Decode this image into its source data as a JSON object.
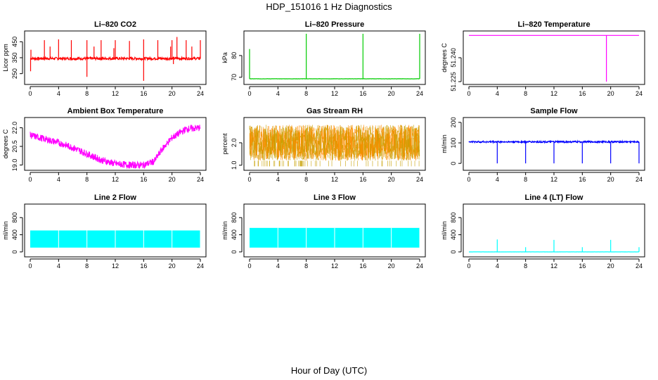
{
  "figure": {
    "title": "HDP_151016  1 Hz Diagnostics",
    "xlabel": "Hour of Day (UTC)"
  },
  "chart_data": [
    {
      "type": "line",
      "title": "Li–820 CO2",
      "ylabel": "Licor ppm",
      "color": "#ff0000",
      "xlim": [
        0,
        24
      ],
      "ylim": [
        200,
        500
      ],
      "xticks": [
        0,
        4,
        8,
        12,
        16,
        20,
        24
      ],
      "yticks": [
        250,
        350,
        450
      ],
      "baseline": 345,
      "noise": 8,
      "spikes_up": [
        [
          0.1,
          400
        ],
        [
          2.0,
          460
        ],
        [
          2.8,
          420
        ],
        [
          4.0,
          465
        ],
        [
          5.8,
          460
        ],
        [
          8.0,
          460
        ],
        [
          9.0,
          420
        ],
        [
          10.0,
          460
        ],
        [
          11.8,
          410
        ],
        [
          12.0,
          460
        ],
        [
          14.0,
          455
        ],
        [
          16.0,
          465
        ],
        [
          18.0,
          460
        ],
        [
          19.8,
          420
        ],
        [
          20.0,
          460
        ],
        [
          20.7,
          480
        ],
        [
          22.0,
          460
        ],
        [
          22.8,
          420
        ],
        [
          24.0,
          460
        ]
      ],
      "spikes_down": [
        [
          0.05,
          265
        ],
        [
          8.0,
          230
        ],
        [
          16.0,
          205
        ],
        [
          20.2,
          310
        ]
      ],
      "grid": false
    },
    {
      "type": "line",
      "title": "Li–820 Pressure",
      "ylabel": "kPa",
      "color": "#00cc00",
      "xlim": [
        0,
        24
      ],
      "ylim": [
        68,
        90
      ],
      "xticks": [
        0,
        4,
        8,
        12,
        16,
        20,
        24
      ],
      "yticks": [
        70,
        80
      ],
      "baseline": 69.3,
      "noise": 0.05,
      "spikes_up": [
        [
          0.0,
          83
        ],
        [
          8.0,
          90
        ],
        [
          16.0,
          90
        ],
        [
          24.0,
          90
        ]
      ],
      "spikes_down": [],
      "grid": false
    },
    {
      "type": "line",
      "title": "Li–820 Temperature",
      "ylabel": "degrees C",
      "color": "#ff00ff",
      "xlim": [
        0,
        24
      ],
      "ylim": [
        51.225,
        51.255
      ],
      "xticks": [
        0,
        4,
        8,
        12,
        16,
        20,
        24
      ],
      "yticks": [
        51.225,
        51.24
      ],
      "ytick_labels": [
        "51.225",
        "51.240"
      ],
      "baseline": 51.254,
      "noise": 0,
      "spikes_up": [],
      "spikes_down": [
        [
          19.4,
          51.225
        ]
      ],
      "grid": false
    },
    {
      "type": "line",
      "title": "Ambient Box Temperature",
      "ylabel": "degrees C",
      "color": "#ff00ff",
      "xlim": [
        0,
        24
      ],
      "ylim": [
        18.8,
        22.6
      ],
      "xticks": [
        0,
        4,
        8,
        12,
        16,
        20,
        24
      ],
      "yticks": [
        19.0,
        20.5,
        22.0
      ],
      "ytick_labels": [
        "19.0",
        "20.5",
        "22.0"
      ],
      "x": [
        0,
        2,
        4,
        6,
        8,
        10,
        12,
        14,
        16,
        17.5,
        18.5,
        20,
        22,
        24
      ],
      "y": [
        21.4,
        21.1,
        20.8,
        20.4,
        19.9,
        19.4,
        19.1,
        19.0,
        19.0,
        19.3,
        20.2,
        21.2,
        21.9,
        22.0
      ],
      "noise": 0.28,
      "grid": false
    },
    {
      "type": "scatter",
      "title": "Gas Stream RH",
      "ylabel": "percent",
      "color": "#ff8c00",
      "color2": "#c8a000",
      "xlim": [
        0,
        24
      ],
      "ylim": [
        0.9,
        3.0
      ],
      "xticks": [
        0,
        4,
        8,
        12,
        16,
        20,
        24
      ],
      "yticks": [
        1.0,
        2.0
      ],
      "ytick_labels": [
        "1.0",
        "2.0"
      ],
      "band_low": 1.2,
      "band_high": 2.8,
      "grid": false
    },
    {
      "type": "line",
      "title": "Sample Flow",
      "ylabel": "ml/min",
      "color": "#0000ff",
      "xlim": [
        0,
        24
      ],
      "ylim": [
        -20,
        210
      ],
      "xticks": [
        0,
        4,
        8,
        12,
        16,
        20,
        24
      ],
      "yticks": [
        0,
        100,
        200
      ],
      "baseline": 105,
      "noise": 4,
      "spikes_up": [],
      "spikes_down": [
        [
          4.0,
          0
        ],
        [
          8.0,
          0
        ],
        [
          12.0,
          0
        ],
        [
          16.0,
          0
        ],
        [
          20.0,
          0
        ],
        [
          24.0,
          0
        ]
      ],
      "grid": false
    },
    {
      "type": "area",
      "title": "Line 2 Flow",
      "ylabel": "ml/min",
      "color": "#00ffff",
      "xlim": [
        0,
        24
      ],
      "ylim": [
        -50,
        1050
      ],
      "xticks": [
        0,
        4,
        8,
        12,
        16,
        20,
        24
      ],
      "yticks": [
        0,
        400,
        800
      ],
      "band_low": 100,
      "band_high": 500,
      "gaps": [
        4.0,
        8.0,
        12.0,
        16.0,
        20.0,
        24.0
      ],
      "grid": false
    },
    {
      "type": "area",
      "title": "Line 3 Flow",
      "ylabel": "ml/min",
      "color": "#00ffff",
      "xlim": [
        0,
        24
      ],
      "ylim": [
        -50,
        1050
      ],
      "xticks": [
        0,
        4,
        8,
        12,
        16,
        20,
        24
      ],
      "yticks": [
        0,
        400,
        800
      ],
      "band_low": 100,
      "band_high": 560,
      "gaps": [
        4.0,
        8.0,
        12.0,
        16.0,
        20.0,
        24.0
      ],
      "grid": false
    },
    {
      "type": "line",
      "title": "Line 4 (LT) Flow",
      "ylabel": "ml/min",
      "color": "#00ffff",
      "xlim": [
        0,
        24
      ],
      "ylim": [
        -50,
        1050
      ],
      "xticks": [
        0,
        4,
        8,
        12,
        16,
        20,
        24
      ],
      "yticks": [
        0,
        400,
        800
      ],
      "baseline": 0,
      "noise": 1,
      "spikes_up": [
        [
          4.0,
          290
        ],
        [
          8.0,
          110
        ],
        [
          12.0,
          280
        ],
        [
          16.0,
          110
        ],
        [
          20.0,
          280
        ],
        [
          24.0,
          110
        ]
      ],
      "spikes_down": [],
      "grid": false
    }
  ]
}
